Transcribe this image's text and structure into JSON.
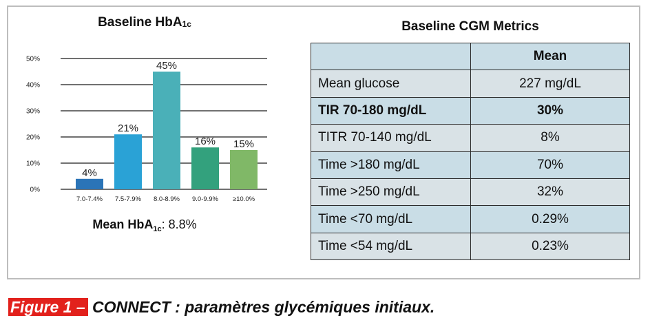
{
  "left_panel": {
    "title": "Baseline HbA",
    "title_sub": "1c",
    "mean_label": "Mean HbA",
    "mean_label_sub": "1c",
    "mean_value": ": 8.8%"
  },
  "chart_data": {
    "type": "bar",
    "title": "Baseline HbA1c",
    "categories": [
      "7.0-7.4%",
      "7.5-7.9%",
      "8.0-8.9%",
      "9.0-9.9%",
      "≥10.0%"
    ],
    "values": [
      4,
      21,
      45,
      16,
      15
    ],
    "value_labels": [
      "4%",
      "21%",
      "45%",
      "16%",
      "15%"
    ],
    "colors": [
      "#2b74b7",
      "#2aa2d6",
      "#4ab0b8",
      "#33a17d",
      "#80b867"
    ],
    "yticks": [
      "0%",
      "10%",
      "20%",
      "30%",
      "40%",
      "50%"
    ],
    "ylim": [
      0,
      50
    ],
    "grid": true,
    "legend": "none"
  },
  "right_panel": {
    "title": "Baseline CGM Metrics",
    "header": {
      "metric": "",
      "mean": "Mean"
    },
    "rows": [
      {
        "metric": "Mean glucose",
        "value": "227 mg/dL",
        "bold": false
      },
      {
        "metric": "TIR 70-180 mg/dL",
        "value": "30%",
        "bold": true
      },
      {
        "metric": "TITR 70-140 mg/dL",
        "value": "8%",
        "bold": false
      },
      {
        "metric": "Time >180 mg/dL",
        "value": "70%",
        "bold": false
      },
      {
        "metric": "Time >250 mg/dL",
        "value": "32%",
        "bold": false
      },
      {
        "metric": "Time <70 mg/dL",
        "value": "0.29%",
        "bold": false
      },
      {
        "metric": "Time <54 mg/dL",
        "value": "0.23%",
        "bold": false
      }
    ],
    "row_colors": {
      "shade": "#c9dde6",
      "plain": "#d9e2e6"
    }
  },
  "caption": {
    "tag": "Figure 1 –",
    "text": " CONNECT : paramètres glycémiques initiaux.",
    "tag_color": "#e2211c"
  }
}
